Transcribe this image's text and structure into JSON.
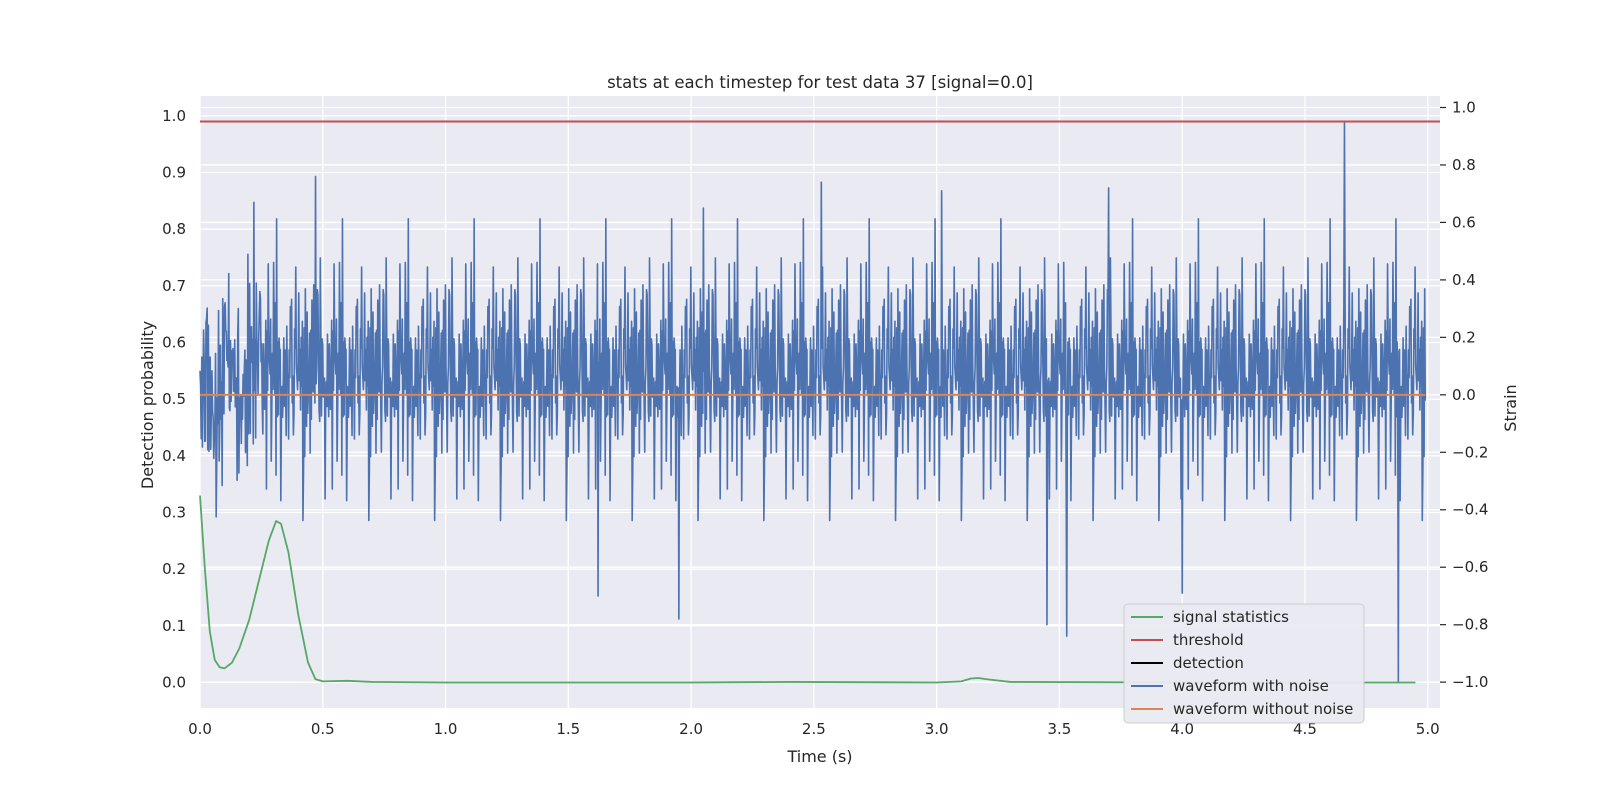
{
  "chart_data": {
    "type": "line",
    "title": "stats at each timestep for test data 37 [signal=0.0]",
    "xlabel": "Time (s)",
    "ylabel": "Detection probability",
    "y2label": "Strain",
    "xlim": [
      0.0,
      5.05
    ],
    "ylim": [
      -0.045,
      1.035
    ],
    "y2lim": [
      -1.09,
      1.04
    ],
    "xticks": [
      "0.0",
      "0.5",
      "1.0",
      "1.5",
      "2.0",
      "2.5",
      "3.0",
      "3.5",
      "4.0",
      "4.5",
      "5.0"
    ],
    "yticks": [
      "0.0",
      "0.1",
      "0.2",
      "0.3",
      "0.4",
      "0.5",
      "0.6",
      "0.7",
      "0.8",
      "0.9",
      "1.0"
    ],
    "y2ticks": [
      "−1.0",
      "−0.8",
      "−0.6",
      "−0.4",
      "−0.2",
      "0.0",
      "0.2",
      "0.4",
      "0.6",
      "0.8",
      "1.0"
    ],
    "grid": true,
    "legend_position": "lower-right",
    "colors": {
      "signal_statistics": "#55a868",
      "threshold": "#c44e52",
      "detection": "#000000",
      "waveform_with_noise": "#4c72b0",
      "waveform_without_noise": "#dd8452"
    },
    "series": [
      {
        "name": "signal statistics",
        "axis": "left",
        "x": [
          0.0,
          0.02,
          0.04,
          0.06,
          0.08,
          0.1,
          0.13,
          0.16,
          0.2,
          0.24,
          0.28,
          0.31,
          0.33,
          0.36,
          0.4,
          0.44,
          0.47,
          0.5,
          0.6,
          0.7,
          1.0,
          2.0,
          2.4,
          3.0,
          3.1,
          3.14,
          3.17,
          3.2,
          3.3,
          4.0,
          4.95
        ],
        "values": [
          0.33,
          0.2,
          0.09,
          0.04,
          0.027,
          0.025,
          0.035,
          0.06,
          0.11,
          0.18,
          0.25,
          0.285,
          0.28,
          0.23,
          0.12,
          0.035,
          0.006,
          0.002,
          0.003,
          0.001,
          0.0,
          0.0,
          0.001,
          0.0,
          0.002,
          0.007,
          0.008,
          0.006,
          0.001,
          0.0,
          0.0
        ]
      },
      {
        "name": "threshold",
        "axis": "left",
        "value": 0.99
      },
      {
        "name": "detection",
        "axis": "left",
        "x": [],
        "values": []
      },
      {
        "name": "waveform with noise",
        "axis": "right",
        "description_range": [
          -1.0,
          0.95
        ],
        "spikes": [
          {
            "x": 0.47,
            "value": 0.76
          },
          {
            "x": 0.22,
            "value": 0.67
          },
          {
            "x": 2.05,
            "value": 0.65
          },
          {
            "x": 2.53,
            "value": 0.74
          },
          {
            "x": 3.02,
            "value": 0.71
          },
          {
            "x": 3.7,
            "value": 0.72
          },
          {
            "x": 4.66,
            "value": 0.95
          },
          {
            "x": 1.95,
            "value": -0.78
          },
          {
            "x": 3.45,
            "value": -0.8
          },
          {
            "x": 3.53,
            "value": -0.84
          },
          {
            "x": 4.0,
            "value": -0.69
          },
          {
            "x": 4.88,
            "value": -1.0
          },
          {
            "x": 1.62,
            "value": -0.7
          }
        ]
      },
      {
        "name": "waveform without noise",
        "axis": "right",
        "value": 0.0
      }
    ]
  }
}
